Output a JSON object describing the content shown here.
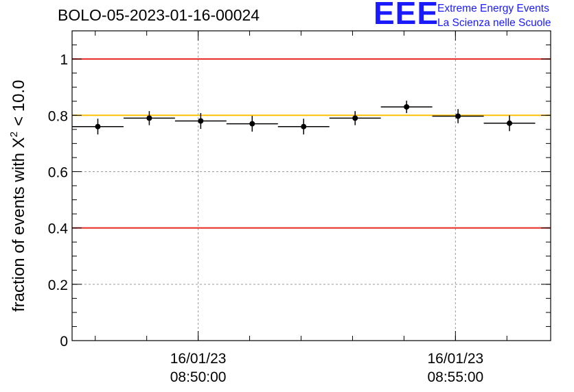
{
  "chart_data": {
    "type": "scatter",
    "title": "BOLO-05-2023-01-16-00024",
    "ylabel_main": "fraction of events with X",
    "ylabel_sup": "2",
    "ylabel_tail": "< 10.0",
    "ylim": [
      0,
      1.1
    ],
    "yticks": [
      "0",
      "0.2",
      "0.4",
      "0.6",
      "0.8",
      "1"
    ],
    "ytick_values": [
      0,
      0.2,
      0.4,
      0.6,
      0.8,
      1.0
    ],
    "xlim_minutes": [
      47.55,
      56.85
    ],
    "xticks": [
      {
        "minute": 50,
        "date": "16/01/23",
        "time": "08:50:00"
      },
      {
        "minute": 55,
        "date": "16/01/23",
        "time": "08:55:00"
      }
    ],
    "grid": true,
    "reference_lines": [
      {
        "y": 1.0,
        "color": "#e8261e"
      },
      {
        "y": 0.4,
        "color": "#e8261e"
      },
      {
        "y": 0.8,
        "color": "#ffc000"
      }
    ],
    "points": [
      {
        "x0": 47.55,
        "x1": 48.55,
        "y": 0.76,
        "err": 0.028
      },
      {
        "x0": 48.55,
        "x1": 49.55,
        "y": 0.79,
        "err": 0.025
      },
      {
        "x0": 49.55,
        "x1": 50.55,
        "y": 0.78,
        "err": 0.028
      },
      {
        "x0": 50.55,
        "x1": 51.55,
        "y": 0.77,
        "err": 0.028
      },
      {
        "x0": 51.55,
        "x1": 52.55,
        "y": 0.76,
        "err": 0.028
      },
      {
        "x0": 52.55,
        "x1": 53.55,
        "y": 0.79,
        "err": 0.025
      },
      {
        "x0": 53.55,
        "x1": 54.55,
        "y": 0.83,
        "err": 0.022
      },
      {
        "x0": 54.55,
        "x1": 55.55,
        "y": 0.797,
        "err": 0.025
      },
      {
        "x0": 55.55,
        "x1": 56.55,
        "y": 0.772,
        "err": 0.028
      }
    ]
  },
  "logo": {
    "mark": "EEE",
    "line1": "Extreme Energy Events",
    "line2": "La Scienza nelle Scuole",
    "color": "#1a1aff"
  }
}
